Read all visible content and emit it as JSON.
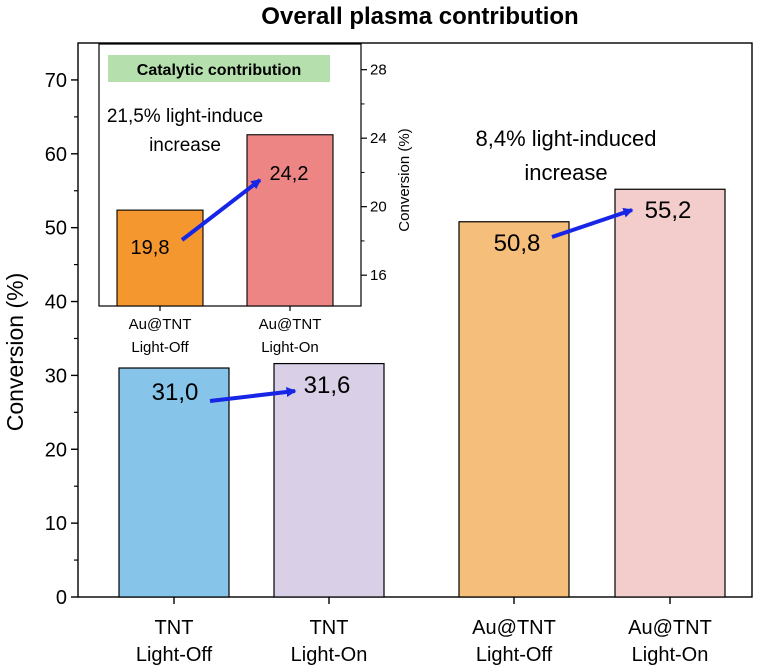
{
  "chart_data": [
    {
      "type": "bar",
      "title": "Overall plasma contribution",
      "ylabel": "Conversion (%)",
      "ylim": [
        0,
        75
      ],
      "yticks": [
        0,
        10,
        20,
        30,
        40,
        50,
        60,
        70
      ],
      "categories": [
        [
          "TNT",
          "Light-Off"
        ],
        [
          "TNT",
          "Light-On"
        ],
        [
          "Au@TNT",
          "Light-Off"
        ],
        [
          "Au@TNT",
          "Light-On"
        ]
      ],
      "values": [
        31.0,
        31.6,
        50.8,
        55.2
      ],
      "value_labels": [
        "31,0",
        "31,6",
        "50,8",
        "55,2"
      ],
      "colors": [
        "#86c4ea",
        "#d9cfe6",
        "#f5be7a",
        "#f3cccc"
      ],
      "annotations": [
        "8,4% light-induced",
        "increase"
      ],
      "grid": false,
      "legend": "none"
    },
    {
      "type": "bar",
      "title": "Catalytic contribution",
      "ylabel": "Conversion (%)",
      "ylim": [
        14.2,
        29.5
      ],
      "yticks": [
        16,
        20,
        24,
        28
      ],
      "yaxis_side": "right",
      "categories": [
        [
          "Au@TNT",
          "Light-Off"
        ],
        [
          "Au@TNT",
          "Light-On"
        ]
      ],
      "values": [
        19.8,
        24.2
      ],
      "value_labels": [
        "19,8",
        "24,2"
      ],
      "colors": [
        "#f5972f",
        "#ee8585"
      ],
      "annotations": [
        "21,5% light-induce",
        "increase"
      ],
      "badge_color": "#b6dfae",
      "grid": false,
      "legend": "none"
    }
  ]
}
